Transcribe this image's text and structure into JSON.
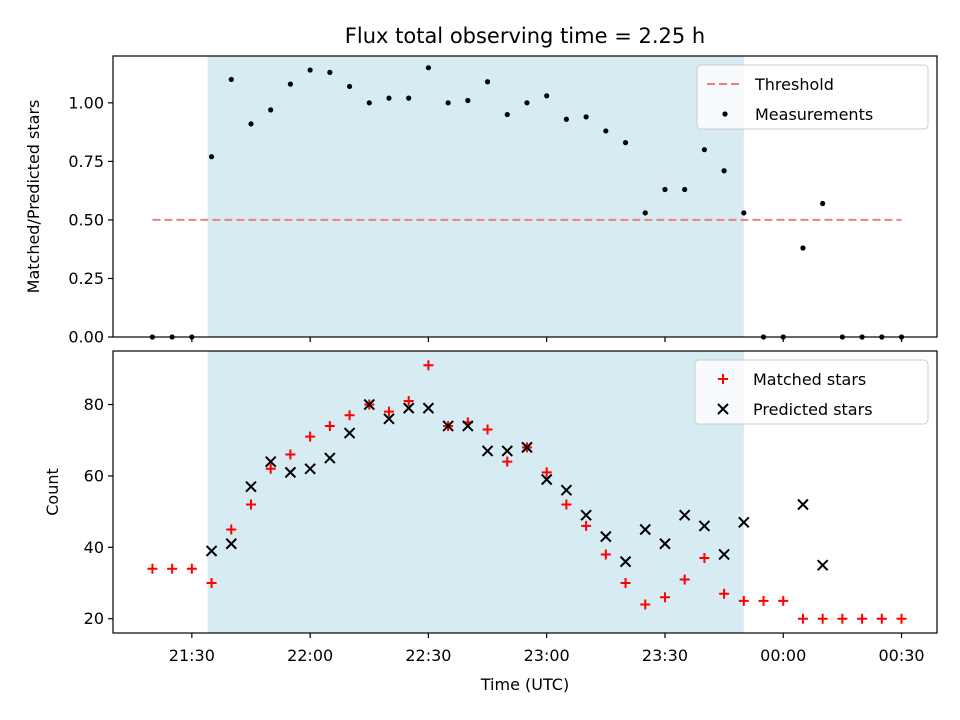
{
  "colors": {
    "shade": "#add8e6",
    "threshold": "#f08080",
    "measurement": "#000000",
    "matched": "#ff0000",
    "predicted": "#000000"
  },
  "chart_data": [
    {
      "type": "scatter",
      "title": "Flux total observing time = 2.25 h",
      "xlabel": "",
      "ylabel": "Matched/Predicted stars",
      "xlim": [
        "21:10",
        "00:39"
      ],
      "ylim": [
        0,
        1.2
      ],
      "yticks": [
        "0.00",
        "0.25",
        "0.50",
        "0.75",
        "1.00"
      ],
      "shaded_interval": [
        "21:34",
        "23:50"
      ],
      "legend_position": "top-right",
      "series": [
        {
          "name": "Threshold",
          "style": "dashed-line",
          "x": [
            "21:20",
            "00:30"
          ],
          "y": [
            0.5,
            0.5
          ]
        },
        {
          "name": "Measurements",
          "style": "dot",
          "x": [
            "21:20",
            "21:25",
            "21:30",
            "21:35",
            "21:40",
            "21:45",
            "21:50",
            "21:55",
            "22:00",
            "22:05",
            "22:10",
            "22:15",
            "22:20",
            "22:25",
            "22:30",
            "22:35",
            "22:40",
            "22:45",
            "22:50",
            "22:55",
            "23:00",
            "23:05",
            "23:10",
            "23:15",
            "23:20",
            "23:25",
            "23:30",
            "23:35",
            "23:40",
            "23:45",
            "23:50",
            "23:55",
            "00:00",
            "00:05",
            "00:10",
            "00:15",
            "00:20",
            "00:25",
            "00:30"
          ],
          "y": [
            0.0,
            0.0,
            0.0,
            0.77,
            1.1,
            0.91,
            0.97,
            1.08,
            1.14,
            1.13,
            1.07,
            1.0,
            1.02,
            1.02,
            1.15,
            1.0,
            1.01,
            1.09,
            0.95,
            1.0,
            1.03,
            0.93,
            0.94,
            0.88,
            0.83,
            0.53,
            0.63,
            0.63,
            0.8,
            0.71,
            0.53,
            0.0,
            0.0,
            0.38,
            0.57,
            0.0,
            0.0,
            0.0,
            0.0
          ]
        }
      ]
    },
    {
      "type": "scatter",
      "title": "",
      "xlabel": "Time (UTC)",
      "ylabel": "Count",
      "xlim": [
        "21:10",
        "00:39"
      ],
      "ylim": [
        16,
        95
      ],
      "xticks": [
        "21:30",
        "22:00",
        "22:30",
        "23:00",
        "23:30",
        "00:00",
        "00:30"
      ],
      "yticks": [
        "20",
        "40",
        "60",
        "80"
      ],
      "shaded_interval": [
        "21:34",
        "23:50"
      ],
      "legend_position": "top-right",
      "series": [
        {
          "name": "Matched stars",
          "style": "plus",
          "x": [
            "21:20",
            "21:25",
            "21:30",
            "21:35",
            "21:40",
            "21:45",
            "21:50",
            "21:55",
            "22:00",
            "22:05",
            "22:10",
            "22:15",
            "22:20",
            "22:25",
            "22:30",
            "22:35",
            "22:40",
            "22:45",
            "22:50",
            "22:55",
            "23:00",
            "23:05",
            "23:10",
            "23:15",
            "23:20",
            "23:25",
            "23:30",
            "23:35",
            "23:40",
            "23:45",
            "23:50",
            "23:55",
            "00:00",
            "00:05",
            "00:10",
            "00:15",
            "00:20",
            "00:25",
            "00:30"
          ],
          "y": [
            34,
            34,
            34,
            30,
            45,
            52,
            62,
            66,
            71,
            74,
            77,
            80,
            78,
            81,
            91,
            74,
            75,
            73,
            64,
            68,
            61,
            52,
            46,
            38,
            30,
            24,
            26,
            31,
            37,
            27,
            25,
            25,
            25,
            20,
            20,
            20,
            20,
            20,
            20
          ]
        },
        {
          "name": "Predicted stars",
          "style": "x",
          "x": [
            "21:35",
            "21:40",
            "21:45",
            "21:50",
            "21:55",
            "22:00",
            "22:05",
            "22:10",
            "22:15",
            "22:20",
            "22:25",
            "22:30",
            "22:35",
            "22:40",
            "22:45",
            "22:50",
            "22:55",
            "23:00",
            "23:05",
            "23:10",
            "23:15",
            "23:20",
            "23:25",
            "23:30",
            "23:35",
            "23:40",
            "23:45",
            "23:50",
            "00:05",
            "00:10"
          ],
          "y": [
            39,
            41,
            57,
            64,
            61,
            62,
            65,
            72,
            80,
            76,
            79,
            79,
            74,
            74,
            67,
            67,
            68,
            59,
            56,
            49,
            43,
            36,
            45,
            41,
            49,
            46,
            38,
            47,
            52,
            35
          ]
        }
      ]
    }
  ]
}
